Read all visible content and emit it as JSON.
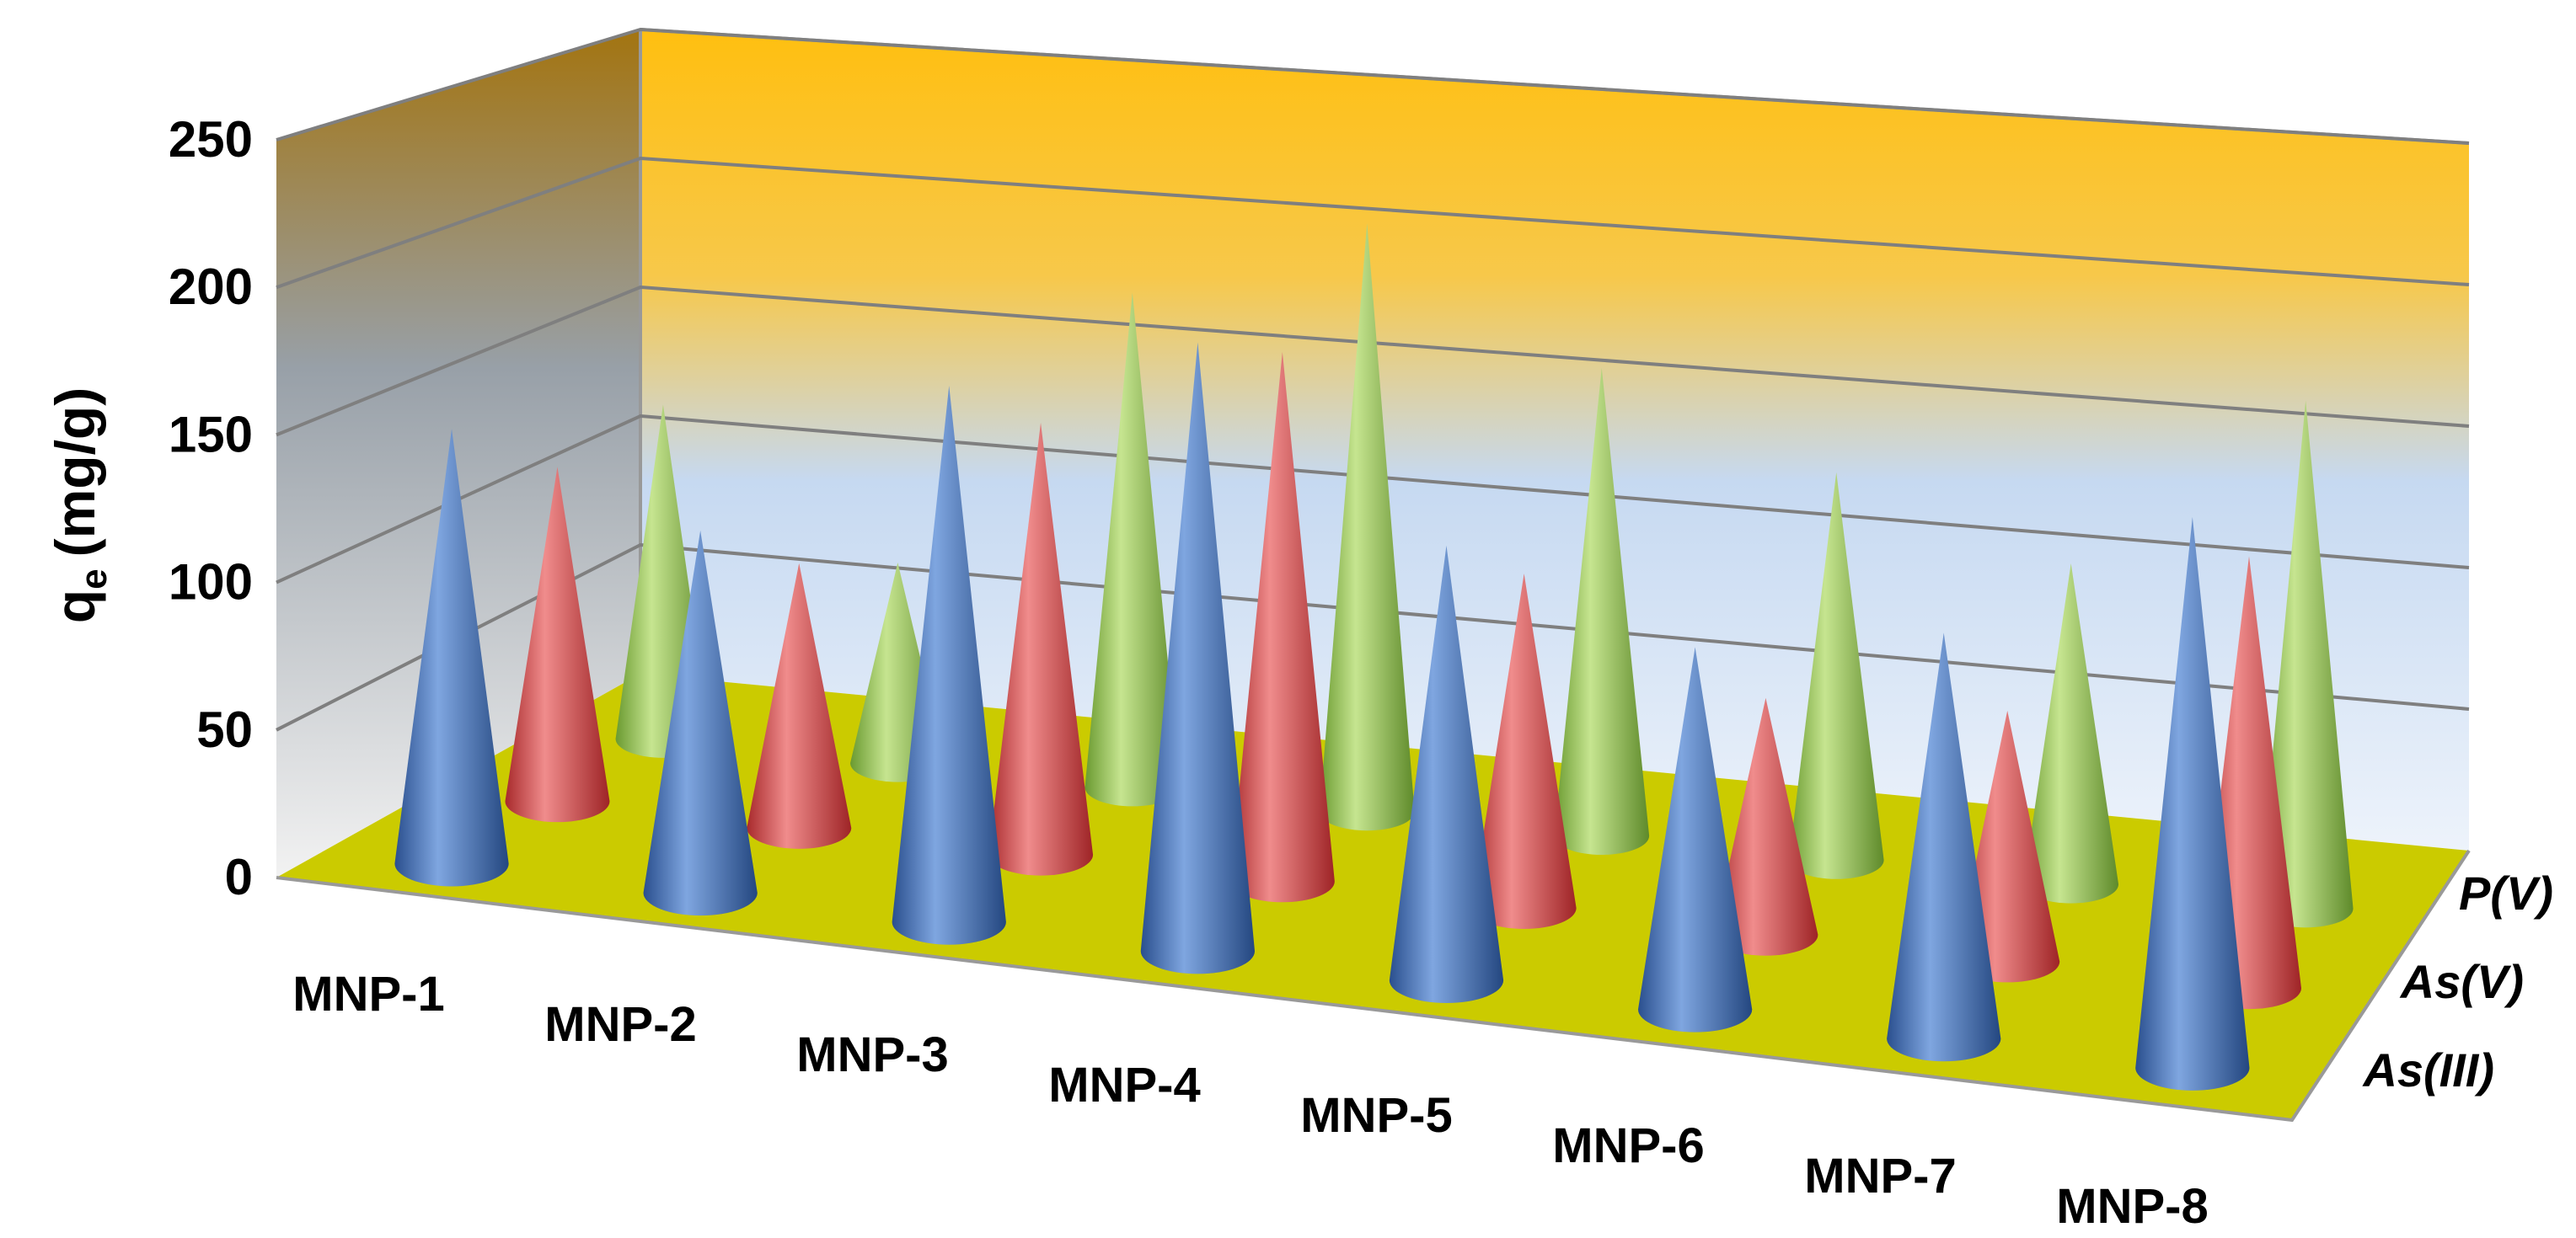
{
  "chart_data": {
    "type": "bar",
    "mark": "cone-3d",
    "title": "",
    "xlabel": "",
    "ylabel": "q",
    "ylabel_subscript": "e",
    "ylabel_unit": "(mg/g)",
    "ylim": [
      0,
      250
    ],
    "yticks": [
      "0",
      "50",
      "100",
      "150",
      "200",
      "250"
    ],
    "grid": true,
    "categories": [
      "MNP-1",
      "MNP-2",
      "MNP-3",
      "MNP-4",
      "MNP-5",
      "MNP-6",
      "MNP-7",
      "MNP-8"
    ],
    "series": [
      {
        "name": "As(III)",
        "color": "#4472C4",
        "values": [
          150,
          125,
          185,
          210,
          150,
          125,
          140,
          190
        ]
      },
      {
        "name": "As(V)",
        "color": "#E0494B",
        "values": [
          120,
          95,
          155,
          190,
          120,
          85,
          90,
          155
        ]
      },
      {
        "name": "P(V)",
        "color": "#92C24F",
        "values": [
          125,
          75,
          185,
          220,
          175,
          145,
          120,
          190
        ]
      }
    ]
  }
}
